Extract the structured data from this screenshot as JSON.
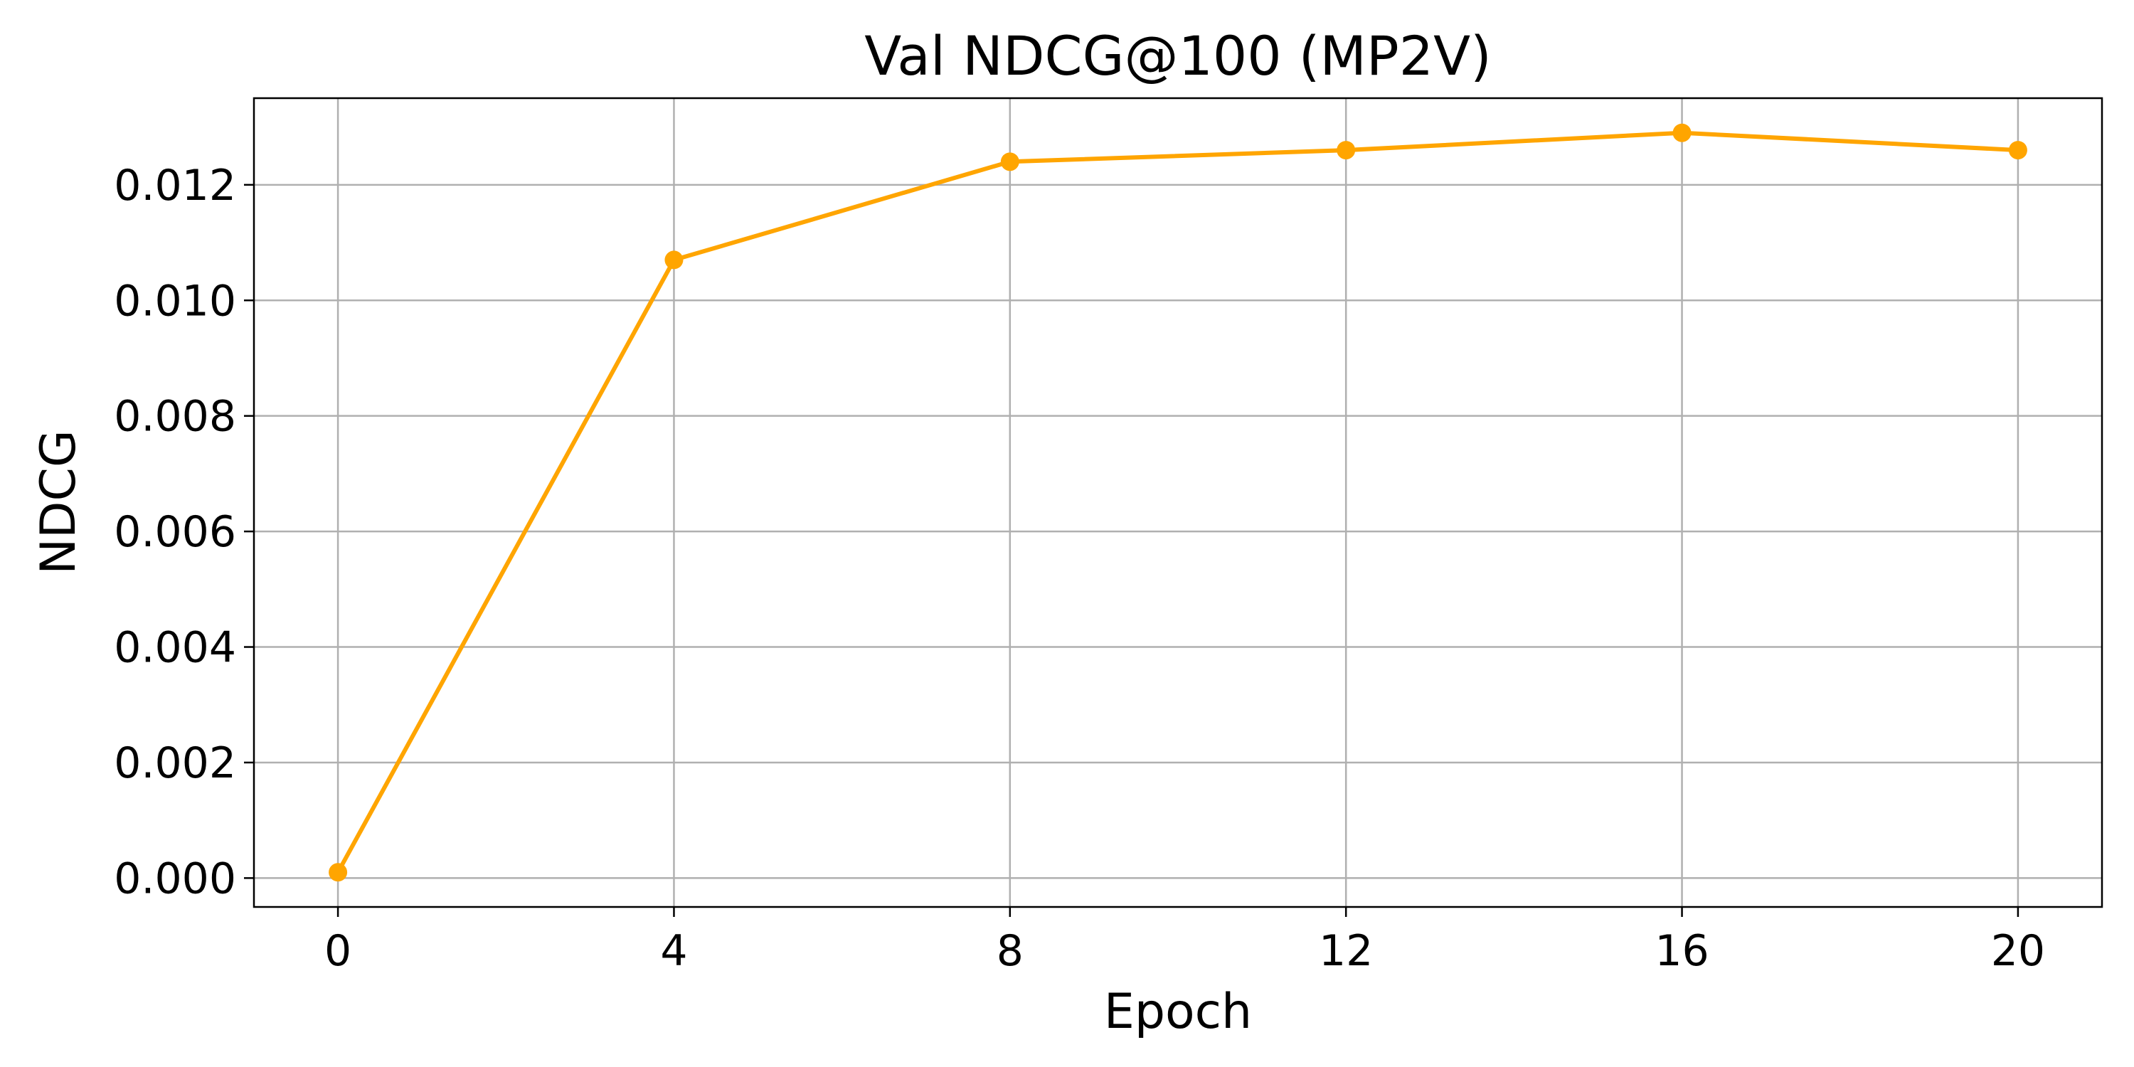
{
  "chart_data": {
    "type": "line",
    "title": "Val NDCG@100 (MP2V)",
    "xlabel": "Epoch",
    "ylabel": "NDCG",
    "x": [
      0,
      4,
      8,
      12,
      16,
      20
    ],
    "series": [
      {
        "values": [
          0.0001,
          0.0107,
          0.0124,
          0.0126,
          0.0129,
          0.0126
        ],
        "color": "#ffa500",
        "marker": "circle"
      }
    ],
    "xlim": [
      -1,
      21
    ],
    "ylim": [
      -0.0005,
      0.0135
    ],
    "xticks": [
      0,
      4,
      8,
      12,
      16,
      20
    ],
    "xtick_labels": [
      "0",
      "4",
      "8",
      "12",
      "16",
      "20"
    ],
    "yticks": [
      0.0,
      0.002,
      0.004,
      0.006,
      0.008,
      0.01,
      0.012
    ],
    "ytick_labels": [
      "0.000",
      "0.002",
      "0.004",
      "0.006",
      "0.008",
      "0.010",
      "0.012"
    ],
    "grid": true,
    "legend": "none"
  }
}
